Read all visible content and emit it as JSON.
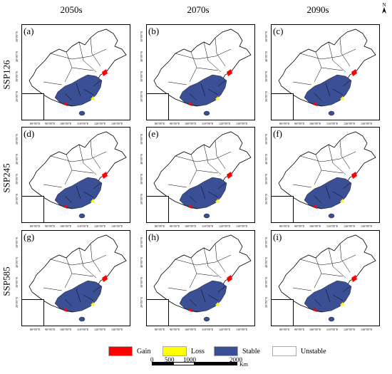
{
  "columns": [
    "2050s",
    "2070s",
    "2090s"
  ],
  "rows": [
    "SSP126",
    "SSP245",
    "SSP585"
  ],
  "panels": [
    "(a)",
    "(b)",
    "(c)",
    "(d)",
    "(e)",
    "(f)",
    "(g)",
    "(h)",
    "(i)"
  ],
  "lat_labels": [
    "50°0'0\"N",
    "40°0'0\"N",
    "30°0'0\"N",
    "20°0'0\"N"
  ],
  "lon_labels": [
    "80°0'0\"E",
    "90°0'0\"E",
    "100°0'0\"E",
    "110°0'0\"E",
    "120°0'0\"E",
    "130°0'0\"E"
  ],
  "north_label": "N",
  "legend": [
    {
      "label": "Gain",
      "color": "#ff0000"
    },
    {
      "label": "Loss",
      "color": "#ffff00"
    },
    {
      "label": "Stable",
      "color": "#3b4f95"
    },
    {
      "label": "Unstable",
      "color": "#ffffff"
    }
  ],
  "scale": {
    "ticks": [
      "0",
      "500",
      "1000",
      "2000"
    ],
    "unit": "Km"
  },
  "colors": {
    "stable": "#3b4f95",
    "gain": "#ff0000",
    "loss": "#ffff00",
    "outline": "#000000"
  }
}
